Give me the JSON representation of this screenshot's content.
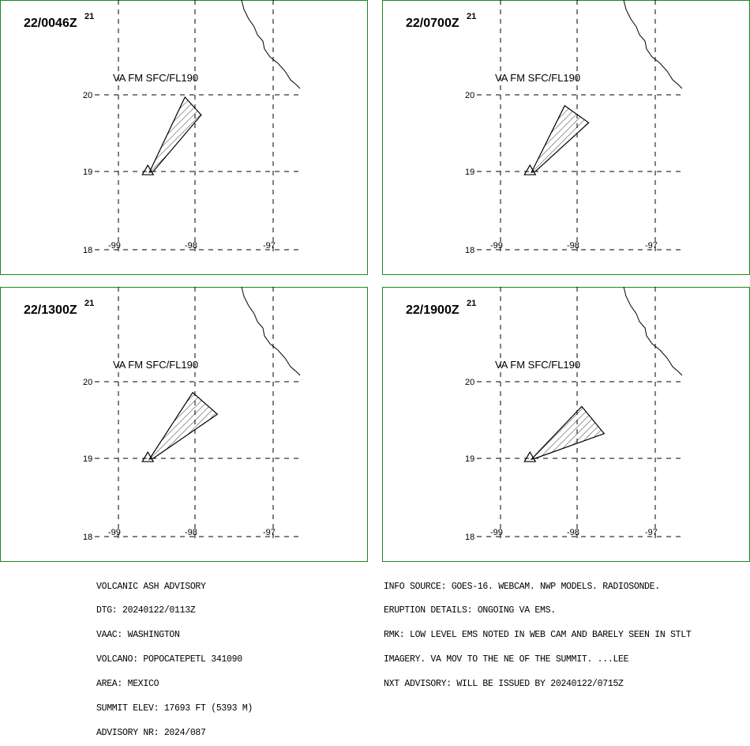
{
  "panels": [
    {
      "time": "22/0046Z",
      "sup": "21",
      "label": "VA FM SFC/FL190",
      "cloud": [
        [
          -98.14,
          19.97
        ],
        [
          -97.93,
          19.74
        ],
        [
          -98.55,
          19.01
        ],
        [
          -98.6,
          19.0
        ]
      ]
    },
    {
      "time": "22/0700Z",
      "sup": "21",
      "label": "VA FM SFC/FL190",
      "cloud": [
        [
          -98.17,
          19.86
        ],
        [
          -97.86,
          19.64
        ],
        [
          -98.55,
          19.01
        ],
        [
          -98.6,
          19.0
        ]
      ]
    },
    {
      "time": "22/1300Z",
      "sup": "21",
      "label": "VA FM SFC/FL190",
      "cloud": [
        [
          -98.04,
          19.86
        ],
        [
          -97.72,
          19.58
        ],
        [
          -98.55,
          19.01
        ],
        [
          -98.6,
          19.0
        ]
      ]
    },
    {
      "time": "22/1900Z",
      "sup": "21",
      "label": "VA FM SFC/FL190",
      "cloud": [
        [
          -97.95,
          19.68
        ],
        [
          -97.66,
          19.33
        ],
        [
          -98.55,
          19.01
        ],
        [
          -98.6,
          19.0
        ]
      ]
    }
  ],
  "lat_labels": [
    "20",
    "19",
    "18"
  ],
  "lon_labels": [
    "-99",
    "-98",
    "-97"
  ],
  "volcano": [
    -98.62,
    19.02
  ],
  "footer_left": [
    "VOLCANIC ASH ADVISORY",
    "DTG: 20240122/0113Z",
    "VAAC: WASHINGTON",
    "VOLCANO: POPOCATEPETL 341090",
    "AREA: MEXICO",
    "SUMMIT ELEV: 17693 FT (5393 M)",
    "ADVISORY NR: 2024/087"
  ],
  "footer_right": [
    "INFO SOURCE: GOES-16. WEBCAM. NWP MODELS. RADIOSONDE.",
    "ERUPTION DETAILS: ONGOING VA EMS.",
    "RMK: LOW LEVEL EMS NOTED IN WEB CAM AND BARELY SEEN IN STLT",
    "IMAGERY. VA MOV TO THE NE OF THE SUMMIT. ...LEE",
    "NXT ADVISORY: WILL BE ISSUED BY 20240122/0715Z"
  ],
  "colors": {
    "frame": "#1a8a1a",
    "lines": "#000000"
  }
}
